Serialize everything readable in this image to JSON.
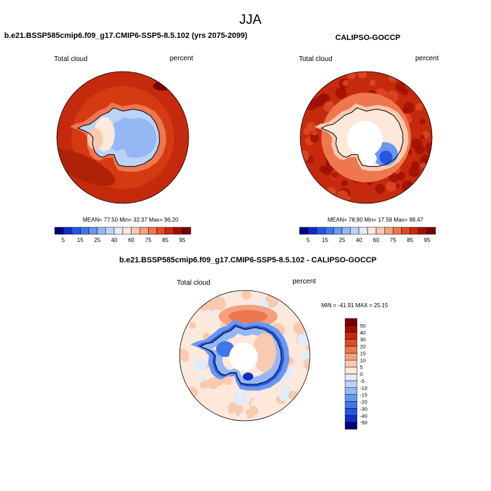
{
  "page": {
    "title": "JJA"
  },
  "panels": {
    "model": {
      "title": "b.e21.BSSP585cmip6.f09_g17.CMIP6-SSP5-8.5.102 (yrs 2075-2099)",
      "variable": "Total cloud",
      "units": "percent",
      "stats": "MEAN=  77.50  Min=  32.37  Max=  96.20"
    },
    "obs": {
      "title": "CALIPSO-GOCCP",
      "variable": "Total cloud",
      "units": "percent",
      "stats": "MEAN=  78.90  Min=  17.58  Max=  98.47"
    },
    "diff": {
      "title": "b.e21.BSSP585cmip6.f09_g17.CMIP6-SSP5-8.5.102 - CALIPSO-GOCCP",
      "variable": "Total cloud",
      "units": "percent",
      "stats": "MIN = -41.91 MAX =  25.15"
    }
  },
  "chart_data": [
    {
      "type": "heatmap",
      "projection": "south-polar-stereographic",
      "title": "b.e21.BSSP585cmip6.f09_g17.CMIP6-SSP5-8.5.102 (yrs 2075-2099)",
      "variable": "Total cloud",
      "units": "percent",
      "mean": 77.5,
      "min": 32.37,
      "max": 96.2,
      "levels": [
        5,
        10,
        15,
        20,
        25,
        30,
        40,
        50,
        60,
        70,
        75,
        80,
        85,
        90,
        95
      ],
      "tick_labels": [
        "5",
        "15",
        "25",
        "40",
        "60",
        "75",
        "85",
        "95"
      ],
      "colors": [
        "#000080",
        "#0c2fc4",
        "#2456e0",
        "#3f76ea",
        "#6a97f0",
        "#95b8f5",
        "#bcd3f8",
        "#e1ecfb",
        "#fde8dc",
        "#f9c9b0",
        "#f5a17f",
        "#ee7750",
        "#e14a25",
        "#c52a0c",
        "#9e0f02",
        "#780000"
      ]
    },
    {
      "type": "heatmap",
      "projection": "south-polar-stereographic",
      "title": "CALIPSO-GOCCP",
      "variable": "Total cloud",
      "units": "percent",
      "mean": 78.9,
      "min": 17.58,
      "max": 98.47,
      "levels": [
        5,
        10,
        15,
        20,
        25,
        30,
        40,
        50,
        60,
        70,
        75,
        80,
        85,
        90,
        95
      ],
      "tick_labels": [
        "5",
        "15",
        "25",
        "40",
        "60",
        "75",
        "85",
        "95"
      ],
      "colors": [
        "#000080",
        "#0c2fc4",
        "#2456e0",
        "#3f76ea",
        "#6a97f0",
        "#95b8f5",
        "#bcd3f8",
        "#e1ecfb",
        "#fde8dc",
        "#f9c9b0",
        "#f5a17f",
        "#ee7750",
        "#e14a25",
        "#c52a0c",
        "#9e0f02",
        "#780000"
      ]
    },
    {
      "type": "heatmap",
      "projection": "south-polar-stereographic",
      "title": "b.e21.BSSP585cmip6.f09_g17.CMIP6-SSP5-8.5.102 - CALIPSO-GOCCP",
      "variable": "Total cloud",
      "units": "percent",
      "min": -41.91,
      "max": 25.15,
      "levels": [
        -50,
        -40,
        -30,
        -20,
        -15,
        -10,
        -5,
        0,
        5,
        10,
        15,
        20,
        30,
        40,
        50
      ],
      "tick_labels": [
        "-50",
        "-40",
        "-30",
        "-20",
        "-15",
        "-10",
        "-5",
        "0",
        "5",
        "10",
        "15",
        "20",
        "30",
        "40",
        "50"
      ],
      "colors": [
        "#000080",
        "#0c2fc4",
        "#2456e0",
        "#3f76ea",
        "#6a97f0",
        "#95b8f5",
        "#bcd3f8",
        "#e1ecfb",
        "#fde8dc",
        "#f9c9b0",
        "#f5a17f",
        "#ee7750",
        "#e14a25",
        "#c52a0c",
        "#9e0f02",
        "#780000"
      ]
    }
  ]
}
